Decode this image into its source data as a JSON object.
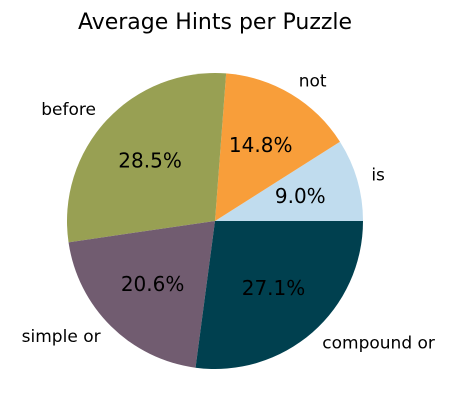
{
  "chart_data": {
    "type": "pie",
    "title": "Average Hints per Puzzle",
    "categories": [
      "is",
      "not",
      "before",
      "simple or",
      "compound or"
    ],
    "values": [
      9.0,
      14.8,
      28.5,
      20.6,
      27.1
    ],
    "value_labels": [
      "9.0%",
      "14.8%",
      "28.5%",
      "20.6%",
      "27.1%"
    ],
    "colors": [
      "#c0dcee",
      "#f89e3a",
      "#98a053",
      "#715c70",
      "#00404f"
    ],
    "start_angle_deg": 0,
    "direction": "counterclockwise",
    "legend": "none"
  }
}
